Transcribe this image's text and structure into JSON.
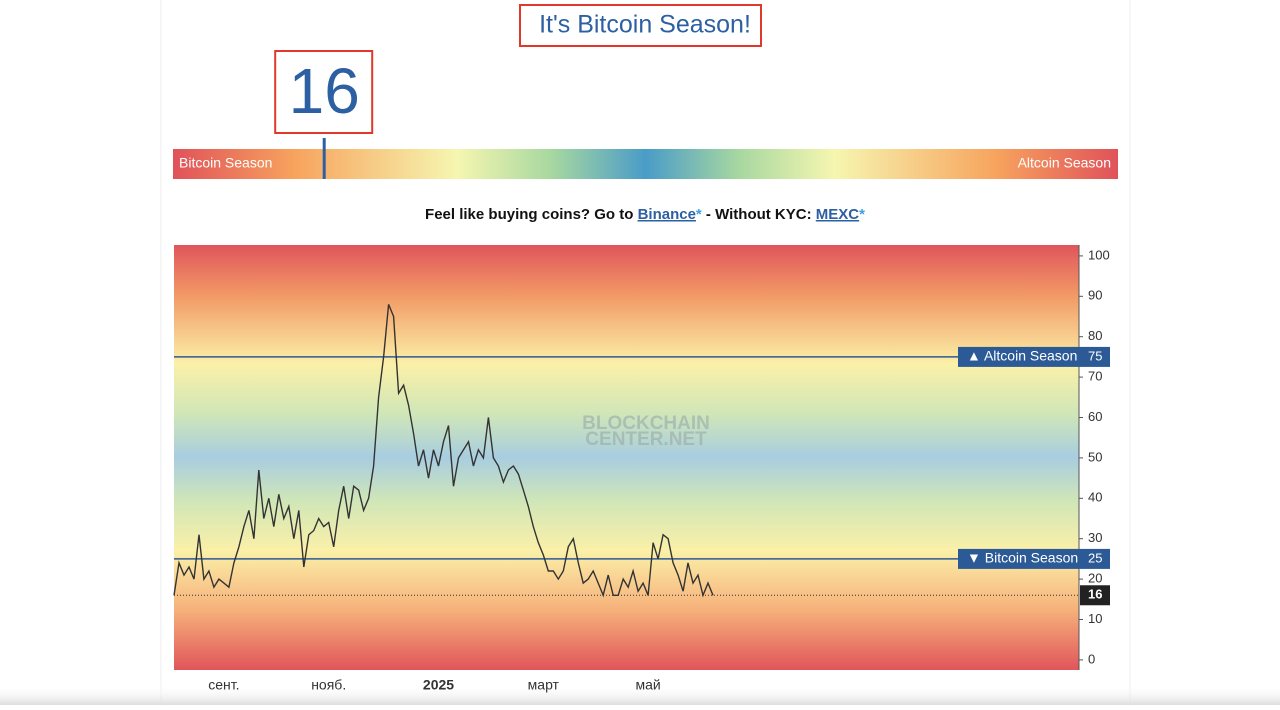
{
  "header": {
    "title": "It's Bitcoin Season!"
  },
  "gauge": {
    "value": 16,
    "range": [
      0,
      100
    ],
    "left_label": "Bitcoin Season",
    "right_label": "Altcoin Season"
  },
  "promo": {
    "text1": "Feel like buying coins? Go to ",
    "link1": "Binance",
    "star1": "*",
    "text2": " - Without KYC: ",
    "link2": "MEXC",
    "star2": "*"
  },
  "watermark": [
    "BLOCKCHAIN",
    "CENTER.NET"
  ],
  "chart_data": {
    "type": "line",
    "categories": [
      null,
      null,
      null,
      null,
      null,
      null,
      null,
      null,
      null,
      null,
      "сент.",
      null,
      null,
      null,
      null,
      null,
      null,
      null,
      null,
      null,
      null,
      null,
      null,
      null,
      null,
      null,
      null,
      null,
      null,
      null,
      null,
      "нояб.",
      null,
      null,
      null,
      null,
      null,
      null,
      null,
      null,
      null,
      null,
      null,
      null,
      null,
      null,
      null,
      null,
      null,
      null,
      null,
      null,
      null,
      "2025",
      null,
      null,
      null,
      null,
      null,
      null,
      null,
      null,
      null,
      null,
      null,
      null,
      null,
      null,
      null,
      null,
      null,
      null,
      null,
      null,
      "март",
      null,
      null,
      null,
      null,
      null,
      null,
      null,
      null,
      null,
      null,
      null,
      null,
      null,
      null,
      null,
      null,
      null,
      null,
      null,
      null,
      "май",
      null,
      null,
      null,
      null,
      null,
      null,
      null,
      null,
      null,
      null,
      null,
      null,
      null
    ],
    "series": [
      {
        "color": "#333333",
        "values": [
          16,
          24,
          21,
          23,
          20,
          31,
          20,
          22,
          18,
          20,
          19,
          18,
          24,
          28,
          33,
          37,
          30,
          47,
          35,
          40,
          33,
          41,
          35,
          38,
          30,
          37,
          23,
          31,
          32,
          35,
          33,
          34,
          28,
          37,
          43,
          35,
          43,
          42,
          37,
          40,
          48,
          65,
          75,
          88,
          85,
          66,
          68,
          63,
          56,
          48,
          52,
          45,
          52,
          48,
          54,
          58,
          43,
          50,
          52,
          54,
          48,
          52,
          50,
          60,
          50,
          48,
          44,
          47,
          48,
          46,
          42,
          38,
          33,
          29,
          26,
          22,
          22,
          20,
          22,
          28,
          30,
          24,
          19,
          20,
          22,
          19,
          16,
          21,
          16,
          16,
          20,
          18,
          22,
          17,
          19,
          16,
          29,
          25,
          31,
          30,
          24,
          21,
          17,
          24,
          19,
          21,
          16,
          19,
          16
        ]
      }
    ],
    "ylim": [
      -2.5,
      102.7
    ],
    "yticks": [
      0,
      10,
      20,
      30,
      40,
      50,
      60,
      70,
      80,
      90,
      100
    ],
    "reference_lines": [
      {
        "value": 75,
        "label": "▲ Altcoin Season"
      },
      {
        "value": 25,
        "label": "▼ Bitcoin Season"
      }
    ],
    "grid": false
  }
}
